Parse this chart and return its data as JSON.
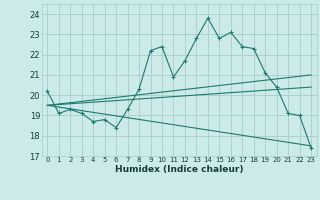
{
  "xlabel": "Humidex (Indice chaleur)",
  "bg_color": "#cceaea",
  "grid_color": "#aacccc",
  "line_color": "#1a7a6e",
  "xlim": [
    -0.5,
    23.5
  ],
  "ylim": [
    17.0,
    24.5
  ],
  "xticks": [
    0,
    1,
    2,
    3,
    4,
    5,
    6,
    7,
    8,
    9,
    10,
    11,
    12,
    13,
    14,
    15,
    16,
    17,
    18,
    19,
    20,
    21,
    22,
    23
  ],
  "yticks": [
    17,
    18,
    19,
    20,
    21,
    22,
    23,
    24
  ],
  "line1_x": [
    0,
    1,
    2,
    3,
    4,
    5,
    6,
    7,
    8,
    9,
    10,
    11,
    12,
    13,
    14,
    15,
    16,
    17,
    18,
    19,
    20,
    21,
    22,
    23
  ],
  "line1_y": [
    20.2,
    19.1,
    19.3,
    19.1,
    18.7,
    18.8,
    18.4,
    19.3,
    20.3,
    22.2,
    22.4,
    20.9,
    21.7,
    22.8,
    23.8,
    22.8,
    23.1,
    22.4,
    22.3,
    21.1,
    20.4,
    19.1,
    19.0,
    17.4
  ],
  "line2_x": [
    0,
    23
  ],
  "line2_y": [
    19.5,
    21.0
  ],
  "line3_x": [
    0,
    23
  ],
  "line3_y": [
    19.5,
    20.4
  ],
  "line4_x": [
    0,
    23
  ],
  "line4_y": [
    19.5,
    17.5
  ]
}
